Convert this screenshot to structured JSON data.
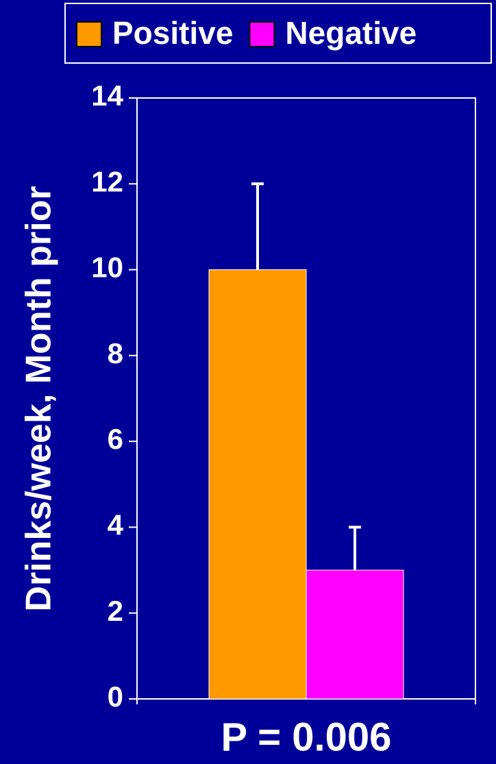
{
  "chart_data": {
    "type": "bar",
    "y_label": "Drinks/week, Month prior",
    "annotation": "P  =  0.006",
    "categories": [
      null
    ],
    "series": [
      {
        "name": "Positive",
        "color": "#ff9900",
        "values": [
          10
        ],
        "errors": [
          2
        ]
      },
      {
        "name": "Negative",
        "color": "#ff00ff",
        "values": [
          3
        ],
        "errors": [
          1
        ]
      }
    ],
    "ylim": [
      0,
      14
    ],
    "yticks": [
      0,
      2,
      4,
      6,
      8,
      10,
      12,
      14
    ],
    "grid": false,
    "legend": "top"
  }
}
